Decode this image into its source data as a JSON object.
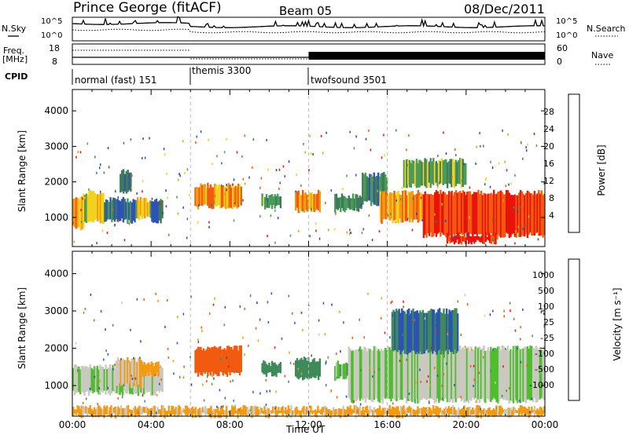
{
  "header": {
    "station": "Prince George (fitACF)",
    "beam": "Beam 05",
    "date": "08/Dec/2011"
  },
  "top_panels": {
    "nsky_label": "N.Sky",
    "nsearch_label": "N.Search",
    "freq_label_1": "Freq.",
    "freq_label_2": "[MHz]",
    "nave_label": "Nave",
    "cpid_label": "CPID",
    "count_ticks": [
      "10^5",
      "10^0"
    ],
    "freq_ticks": [
      "18",
      "8"
    ],
    "nave_ticks": [
      "60",
      "0"
    ],
    "cpid_modes": [
      {
        "label": "normal (fast) 151",
        "start_hour": 0
      },
      {
        "label": "themis 3300",
        "start_hour": 6
      },
      {
        "label": "twofsound 3501",
        "start_hour": 12
      }
    ]
  },
  "colors": {
    "power": [
      "#1f3de0",
      "#2d53b4",
      "#3f7a5a",
      "#4a9a5a",
      "#f2d21f",
      "#f39a15",
      "#f25a10",
      "#e8140c"
    ],
    "velocity": [
      "#e8140c",
      "#f25a10",
      "#f39a15",
      "#c9c9c0",
      "#c9c9c0",
      "#4ebe2e",
      "#3f8a5a",
      "#2d53b4",
      "#1f3de0"
    ]
  },
  "chart_data": [
    {
      "type": "heatmap",
      "name": "power",
      "ylabel": "Slant Range [km]",
      "xlabel": "",
      "xlim": [
        0,
        24
      ],
      "ylim": [
        180,
        4600
      ],
      "yticks": [
        "1000",
        "2000",
        "3000",
        "4000"
      ],
      "colorbar_label": "Power [dB]",
      "colorbar_ticks": [
        "4",
        "8",
        "12",
        "16",
        "20",
        "24",
        "28"
      ],
      "clim": [
        0,
        32
      ],
      "regions": [
        {
          "t0": 0.0,
          "t1": 0.6,
          "r0": 700,
          "r1": 1600,
          "level": 22
        },
        {
          "t0": 0.6,
          "t1": 1.6,
          "r0": 900,
          "r1": 1700,
          "level": 18
        },
        {
          "t0": 1.6,
          "t1": 3.2,
          "r0": 900,
          "r1": 1500,
          "level": 10
        },
        {
          "t0": 2.4,
          "t1": 3.0,
          "r0": 1700,
          "r1": 2300,
          "level": 8
        },
        {
          "t0": 3.2,
          "t1": 4.0,
          "r0": 1000,
          "r1": 1500,
          "level": 18
        },
        {
          "t0": 4.0,
          "t1": 4.6,
          "r0": 900,
          "r1": 1500,
          "level": 8
        },
        {
          "t0": 6.2,
          "t1": 8.6,
          "r0": 1300,
          "r1": 1900,
          "level": 22
        },
        {
          "t0": 9.6,
          "t1": 10.6,
          "r0": 1300,
          "r1": 1600,
          "level": 14
        },
        {
          "t0": 11.3,
          "t1": 12.6,
          "r0": 1200,
          "r1": 1700,
          "level": 22
        },
        {
          "t0": 13.3,
          "t1": 14.7,
          "r0": 1200,
          "r1": 1600,
          "level": 12
        },
        {
          "t0": 14.7,
          "t1": 16.0,
          "r0": 1400,
          "r1": 2200,
          "level": 10
        },
        {
          "t0": 15.6,
          "t1": 17.8,
          "r0": 900,
          "r1": 1700,
          "level": 22
        },
        {
          "t0": 17.8,
          "t1": 24.0,
          "r0": 500,
          "r1": 1700,
          "level": 28
        },
        {
          "t0": 19.0,
          "t1": 21.6,
          "r0": 300,
          "r1": 500,
          "level": 30
        },
        {
          "t0": 16.8,
          "t1": 20.0,
          "r0": 1900,
          "r1": 2600,
          "level": 14
        }
      ]
    },
    {
      "type": "heatmap",
      "name": "velocity",
      "ylabel": "Slant Range [km]",
      "xlabel": "Time UT",
      "xlim": [
        0,
        24
      ],
      "ylim": [
        180,
        4600
      ],
      "xticks": [
        "00:00",
        "04:00",
        "08:00",
        "12:00",
        "16:00",
        "20:00",
        "00:00"
      ],
      "yticks": [
        "1000",
        "2000",
        "3000",
        "4000"
      ],
      "colorbar_label": "Velocity [m s⁻¹]",
      "colorbar_ticks": [
        "1000",
        "500",
        "100",
        "25",
        "-25",
        "-100",
        "-500",
        "-1000"
      ],
      "clim": [
        -1200,
        1200
      ],
      "regions": [
        {
          "t0": 0.0,
          "t1": 4.6,
          "r0": 800,
          "r1": 1500,
          "level": 0
        },
        {
          "t0": 2.2,
          "t1": 3.6,
          "r0": 1000,
          "r1": 1700,
          "level": -80
        },
        {
          "t0": 3.4,
          "t1": 4.4,
          "r0": 1300,
          "r1": 1600,
          "level": -300
        },
        {
          "t0": 6.2,
          "t1": 8.6,
          "r0": 1300,
          "r1": 2000,
          "level": -900
        },
        {
          "t0": 9.6,
          "t1": 10.6,
          "r0": 1300,
          "r1": 1600,
          "level": 300
        },
        {
          "t0": 11.3,
          "t1": 12.6,
          "r0": 1200,
          "r1": 1700,
          "level": 200
        },
        {
          "t0": 13.3,
          "t1": 14.7,
          "r0": 1200,
          "r1": 1600,
          "level": 80
        },
        {
          "t0": 14.0,
          "t1": 24.0,
          "r0": 600,
          "r1": 2000,
          "level": 0
        },
        {
          "t0": 16.2,
          "t1": 19.6,
          "r0": 1900,
          "r1": 3000,
          "level": 500
        },
        {
          "t0": 0.0,
          "t1": 24.0,
          "r0": 200,
          "r1": 400,
          "level": -150
        }
      ]
    }
  ]
}
